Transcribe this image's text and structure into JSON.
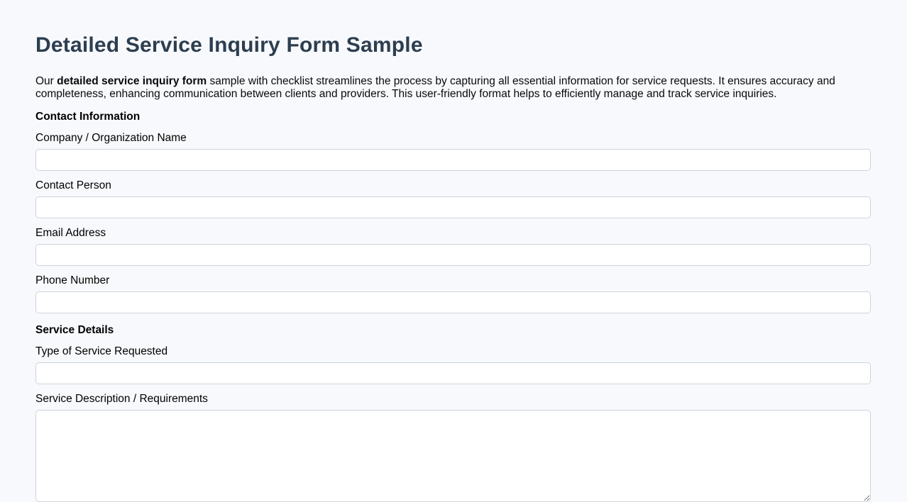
{
  "page": {
    "title": "Detailed Service Inquiry Form Sample",
    "intro": {
      "prefix": "Our ",
      "bold": "detailed service inquiry form",
      "suffix": " sample with checklist streamlines the process by capturing all essential information for service requests. It ensures accuracy and completeness, enhancing communication between clients and providers. This user-friendly format helps to efficiently manage and track service inquiries."
    }
  },
  "form": {
    "sections": [
      {
        "heading": "Contact Information",
        "fields": [
          {
            "label": "Company / Organization Name",
            "type": "text",
            "value": "",
            "placeholder": ""
          },
          {
            "label": "Contact Person",
            "type": "text",
            "value": "",
            "placeholder": ""
          },
          {
            "label": "Email Address",
            "type": "text",
            "value": "",
            "placeholder": ""
          },
          {
            "label": "Phone Number",
            "type": "text",
            "value": "",
            "placeholder": ""
          }
        ]
      },
      {
        "heading": "Service Details",
        "fields": [
          {
            "label": "Type of Service Requested",
            "type": "text",
            "value": "",
            "placeholder": ""
          },
          {
            "label": "Service Description / Requirements",
            "type": "textarea",
            "value": "",
            "placeholder": ""
          }
        ]
      }
    ]
  },
  "colors": {
    "title": "#2c3e50",
    "background": "#f8f9fc",
    "input_border": "#ced4da",
    "input_background": "#ffffff",
    "body_text": "#0a0a0a"
  }
}
